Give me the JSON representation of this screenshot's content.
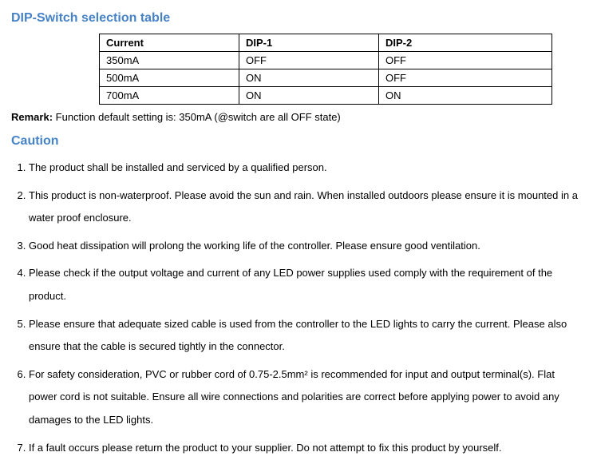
{
  "headings": {
    "dip_switch": "DIP-Switch selection table",
    "caution": "Caution"
  },
  "dip_table": {
    "columns": [
      "Current",
      "DIP-1",
      "DIP-2"
    ],
    "rows": [
      [
        "350mA",
        "OFF",
        "OFF"
      ],
      [
        "500mA",
        "ON",
        "OFF"
      ],
      [
        "700mA",
        "ON",
        "ON"
      ]
    ],
    "col_widths": [
      "158px",
      "158px",
      "200px"
    ]
  },
  "remark": {
    "label": "Remark:",
    "text": " Function default setting is: 350mA (@switch are all OFF state)"
  },
  "caution_items": [
    "The product shall be installed and serviced by a qualified person.",
    "This product is non-waterproof. Please avoid the sun and rain. When installed outdoors please ensure it is mounted in a water proof enclosure.",
    "Good heat dissipation will prolong the working life of the controller. Please ensure good ventilation.",
    "Please check if the output voltage and current of any LED power supplies used comply with the requirement of the product.",
    "Please ensure that adequate sized cable is used from the controller to the LED lights to carry the current. Please also ensure that the cable is secured tightly in the connector.",
    "For safety consideration, PVC or rubber cord of 0.75-2.5mm² is recommended for input and output terminal(s). Flat power cord is not suitable. Ensure all wire connections and polarities are correct before applying power to avoid any damages to the LED lights.",
    "If a fault occurs please return the product to your supplier. Do not attempt to fix this product by yourself."
  ],
  "colors": {
    "heading": "#4682c7",
    "text": "#000000",
    "background": "#ffffff",
    "border": "#000000"
  },
  "typography": {
    "body_fontsize": 13,
    "heading_fontsize": 16,
    "line_height": 2.2
  }
}
